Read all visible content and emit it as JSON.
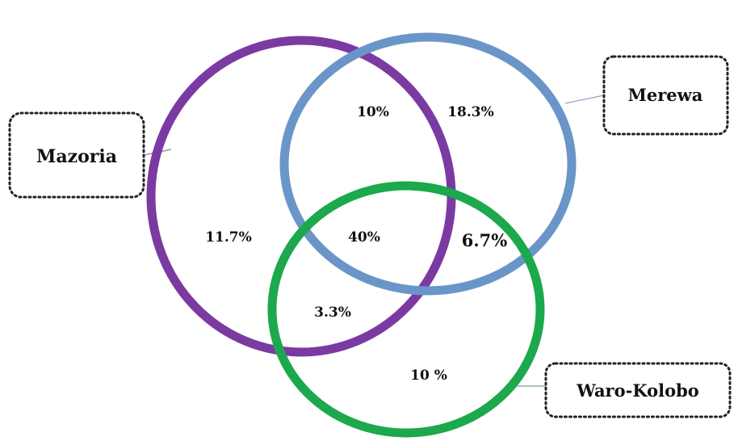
{
  "diagram": {
    "sets": [
      {
        "id": "mazoria",
        "label": "Mazoria",
        "color": "#7b3aa2"
      },
      {
        "id": "merewa",
        "label": "Merewa",
        "color": "#6a95c8"
      },
      {
        "id": "waro_kolobo",
        "label": "Waro-Kolobo",
        "color": "#1ca84c"
      }
    ],
    "regions": {
      "mazoria_only": "11.7%",
      "merewa_only": "18.3%",
      "waro_kolobo_only": "10 %",
      "mazoria_merewa": "10%",
      "merewa_waro_kolobo": "6.7%",
      "mazoria_waro_kolobo": "3.3%",
      "all_three": "40%"
    }
  }
}
